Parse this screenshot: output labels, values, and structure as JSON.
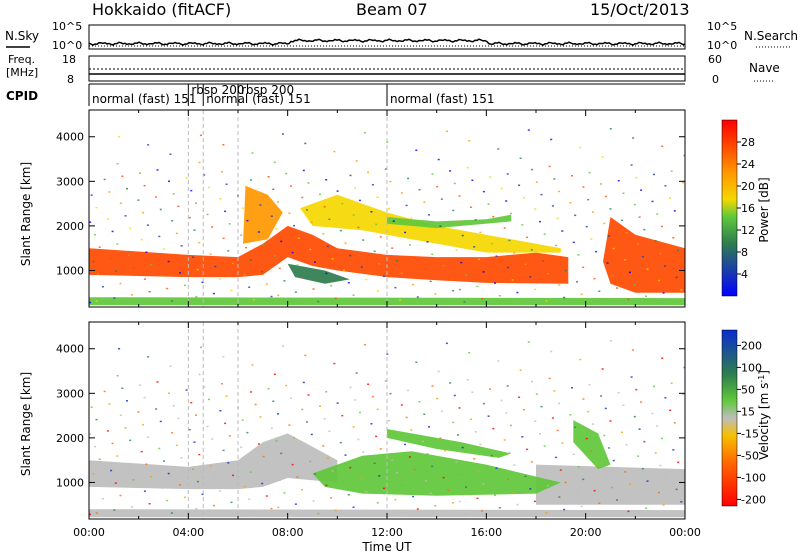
{
  "header": {
    "station": "Hokkaido (fitACF)",
    "beam": "Beam 07",
    "date": "15/Oct/2013"
  },
  "aux_panels": {
    "nsky_label": "N.Sky",
    "nsearch_label": "N.Search",
    "noise_ticks": [
      "10^5",
      "10^0"
    ],
    "freq_label_1": "Freq.",
    "freq_label_2": "[MHz]",
    "freq_ticks": [
      "8",
      "18"
    ],
    "nave_label": "Nave",
    "nave_ticks": [
      "60",
      "0"
    ],
    "cpid_label": "CPID"
  },
  "cpid_segments": [
    {
      "label": "normal (fast)  151",
      "start_hour": 0.0,
      "end_hour": 4.0
    },
    {
      "label": "rbsp  200",
      "start_hour": 4.0,
      "end_hour": 4.6
    },
    {
      "label": "normal (fast)  151",
      "start_hour": 4.6,
      "end_hour": 6.0
    },
    {
      "label": "rbsp  200",
      "start_hour": 6.0,
      "end_hour": 6.6
    },
    {
      "label": "normal (fast)  151",
      "start_hour": 12.0,
      "end_hour": 24.0
    }
  ],
  "chart_data": [
    {
      "type": "heatmap",
      "title": "Power",
      "xlabel": "",
      "ylabel": "Slant Range [km]",
      "xlim": [
        0,
        24
      ],
      "ylim": [
        180,
        4600
      ],
      "ytick_labels": [
        "1000",
        "2000",
        "3000",
        "4000"
      ],
      "colorbar": {
        "label": "Power [dB]",
        "range": [
          0,
          32
        ],
        "ticks": [
          "4",
          "8",
          "12",
          "16",
          "20",
          "24",
          "28"
        ]
      },
      "regions": [
        {
          "name": "main band",
          "value_db": 28,
          "points": [
            [
              0,
              1500
            ],
            [
              4,
              1350
            ],
            [
              6,
              1300
            ],
            [
              7,
              1600
            ],
            [
              8,
              2000
            ],
            [
              9,
              1800
            ],
            [
              10,
              1500
            ],
            [
              12,
              1350
            ],
            [
              14,
              1300
            ],
            [
              16,
              1300
            ],
            [
              18,
              1400
            ],
            [
              19.3,
              1300
            ],
            [
              19.3,
              700
            ],
            [
              16,
              720
            ],
            [
              14,
              780
            ],
            [
              12,
              850
            ],
            [
              10,
              1000
            ],
            [
              9,
              1100
            ],
            [
              8,
              1300
            ],
            [
              7,
              900
            ],
            [
              6,
              850
            ],
            [
              4,
              850
            ],
            [
              0,
              900
            ]
          ]
        },
        {
          "name": "late band",
          "value_db": 28,
          "points": [
            [
              21,
              2200
            ],
            [
              22,
              1800
            ],
            [
              24,
              1500
            ],
            [
              24,
              500
            ],
            [
              22,
              500
            ],
            [
              21,
              700
            ],
            [
              20.7,
              1200
            ]
          ]
        },
        {
          "name": "morning spread",
          "value_db": 24,
          "points": [
            [
              6.3,
              2900
            ],
            [
              7.2,
              2700
            ],
            [
              7.8,
              2300
            ],
            [
              7.2,
              1700
            ],
            [
              6.2,
              1600
            ]
          ]
        },
        {
          "name": "midday structure",
          "value_db": 18,
          "points": [
            [
              8.5,
              2400
            ],
            [
              10,
              2700
            ],
            [
              12,
              2300
            ],
            [
              14,
              2000
            ],
            [
              17,
              1700
            ],
            [
              19,
              1500
            ],
            [
              19,
              1400
            ],
            [
              16,
              1400
            ],
            [
              13,
              1700
            ],
            [
              11,
              1900
            ],
            [
              9,
              2000
            ]
          ]
        },
        {
          "name": "upper echoes",
          "value_db": 14,
          "points": [
            [
              12,
              2200
            ],
            [
              14,
              2100
            ],
            [
              16,
              2150
            ],
            [
              17,
              2250
            ],
            [
              17,
              2100
            ],
            [
              14,
              1950
            ],
            [
              12,
              2050
            ]
          ]
        },
        {
          "name": "low fan",
          "value_db": 10,
          "points": [
            [
              8,
              1150
            ],
            [
              9.5,
              1000
            ],
            [
              10.5,
              800
            ],
            [
              9.5,
              700
            ],
            [
              8.3,
              850
            ]
          ]
        },
        {
          "name": "near range",
          "value_db": 14,
          "points": [
            [
              0,
              400
            ],
            [
              24,
              380
            ],
            [
              24,
              220
            ],
            [
              0,
              220
            ]
          ]
        }
      ]
    },
    {
      "type": "heatmap",
      "title": "Velocity",
      "xlabel": "Time UT",
      "ylabel": "Slant Range [km]",
      "xlim": [
        0,
        24
      ],
      "ylim": [
        180,
        4600
      ],
      "ytick_labels": [
        "1000",
        "2000",
        "3000",
        "4000"
      ],
      "xtick_labels": [
        "00:00",
        "04:00",
        "08:00",
        "12:00",
        "16:00",
        "20:00",
        "00:00"
      ],
      "colorbar": {
        "label": "Velocity [m s^-1]",
        "ticks": [
          "200",
          "100",
          "50",
          "15",
          "-15",
          "-50",
          "-100",
          "-200"
        ]
      },
      "regions": [
        {
          "name": "ground scatter",
          "value_ms": 0,
          "points": [
            [
              0,
              1500
            ],
            [
              4,
              1350
            ],
            [
              6,
              1500
            ],
            [
              7,
              1900
            ],
            [
              8,
              2100
            ],
            [
              9,
              1800
            ],
            [
              10,
              1500
            ],
            [
              10,
              1000
            ],
            [
              8,
              1100
            ],
            [
              7,
              900
            ],
            [
              6,
              850
            ],
            [
              4,
              850
            ],
            [
              0,
              900
            ]
          ]
        },
        {
          "name": "late ground scatter",
          "value_ms": 0,
          "points": [
            [
              18,
              1400
            ],
            [
              24,
              1300
            ],
            [
              24,
              500
            ],
            [
              18,
              500
            ]
          ]
        },
        {
          "name": "eastward flow",
          "value_ms": 40,
          "points": [
            [
              9,
              1200
            ],
            [
              11,
              1600
            ],
            [
              13,
              1700
            ],
            [
              16,
              1400
            ],
            [
              19,
              1000
            ],
            [
              18,
              750
            ],
            [
              14,
              700
            ],
            [
              11,
              750
            ],
            [
              9.5,
              900
            ]
          ]
        },
        {
          "name": "upper band",
          "value_ms": 35,
          "points": [
            [
              12,
              2200
            ],
            [
              15,
              1900
            ],
            [
              17,
              1650
            ],
            [
              16.5,
              1550
            ],
            [
              14,
              1750
            ],
            [
              12,
              2000
            ]
          ]
        },
        {
          "name": "late upper",
          "value_ms": 30,
          "points": [
            [
              19.5,
              2400
            ],
            [
              20.5,
              2100
            ],
            [
              21,
              1400
            ],
            [
              20.5,
              1300
            ],
            [
              19.5,
              1900
            ]
          ]
        },
        {
          "name": "near range",
          "value_ms": 0,
          "points": [
            [
              0,
              400
            ],
            [
              24,
              380
            ],
            [
              24,
              220
            ],
            [
              0,
              220
            ]
          ]
        }
      ]
    }
  ]
}
